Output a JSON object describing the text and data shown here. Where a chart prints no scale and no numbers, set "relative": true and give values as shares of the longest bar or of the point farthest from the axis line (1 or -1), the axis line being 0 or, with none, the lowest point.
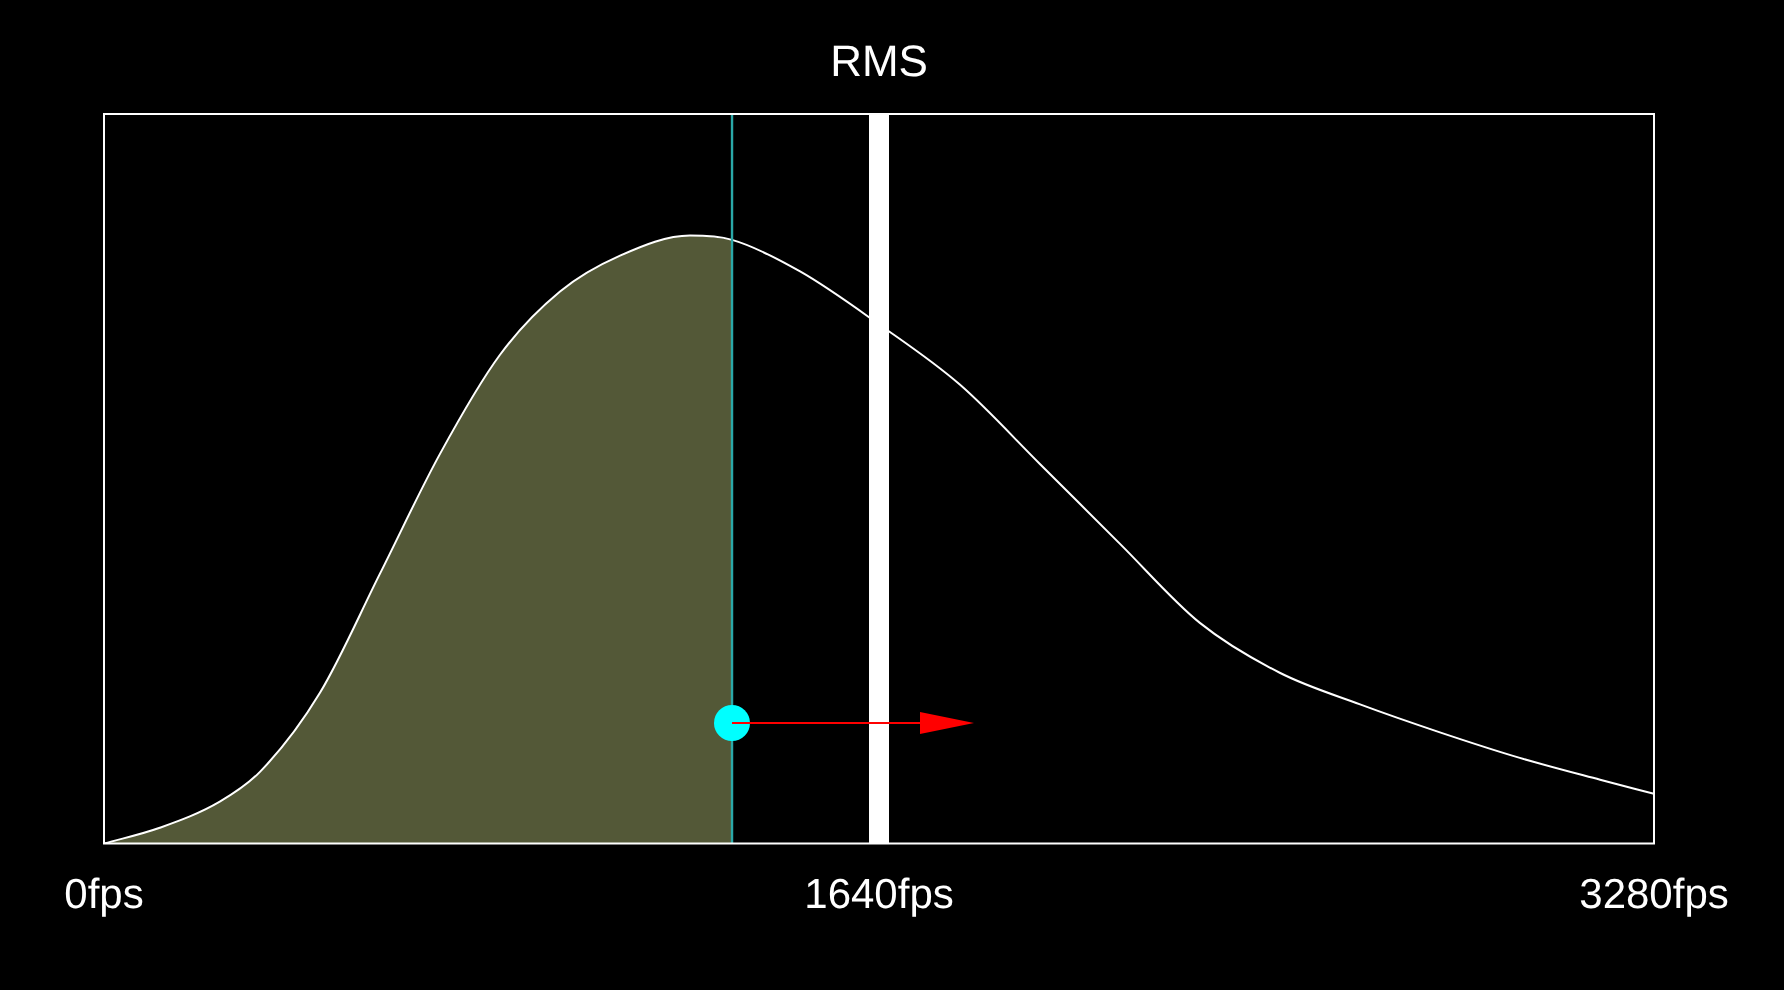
{
  "chart_data": {
    "type": "line",
    "relative": true,
    "xlim": [
      0,
      3280
    ],
    "xticks": [
      {
        "value": 0,
        "label": "0fps"
      },
      {
        "value": 1640,
        "label": "1640fps"
      },
      {
        "value": 3280,
        "label": "3280fps"
      }
    ],
    "legend": false,
    "marker": "none",
    "series": [
      {
        "type": "line",
        "color": "#ffffff",
        "x": [
          0,
          118,
          245,
          330,
          457,
          584,
          711,
          838,
          965,
          1092,
          1240,
          1329,
          1473,
          1642,
          1811,
          1981,
          2150,
          2319,
          2488,
          2658,
          2827,
          2996,
          3166,
          3280
        ],
        "values": [
          0,
          0.026,
          0.069,
          0.118,
          0.248,
          0.444,
          0.641,
          0.804,
          0.908,
          0.967,
          1,
          0.993,
          0.941,
          0.853,
          0.755,
          0.624,
          0.493,
          0.363,
          0.281,
          0.229,
          0.183,
          0.141,
          0.105,
          0.082
        ]
      },
      {
        "type": "area",
        "color": "#7d8452",
        "x": [
          0,
          118,
          245,
          330,
          457,
          584,
          711,
          838,
          965,
          1092,
          1240,
          1329
        ],
        "values": [
          0,
          0.026,
          0.069,
          0.118,
          0.248,
          0.444,
          0.641,
          0.804,
          0.908,
          0.967,
          1,
          0.993
        ]
      }
    ],
    "ref_lines": [
      {
        "axis": "x",
        "value": 1329,
        "color": "#2aa8a8"
      },
      {
        "axis": "x",
        "value": 1640,
        "label": "RMS",
        "color": "#ffffff"
      }
    ]
  }
}
